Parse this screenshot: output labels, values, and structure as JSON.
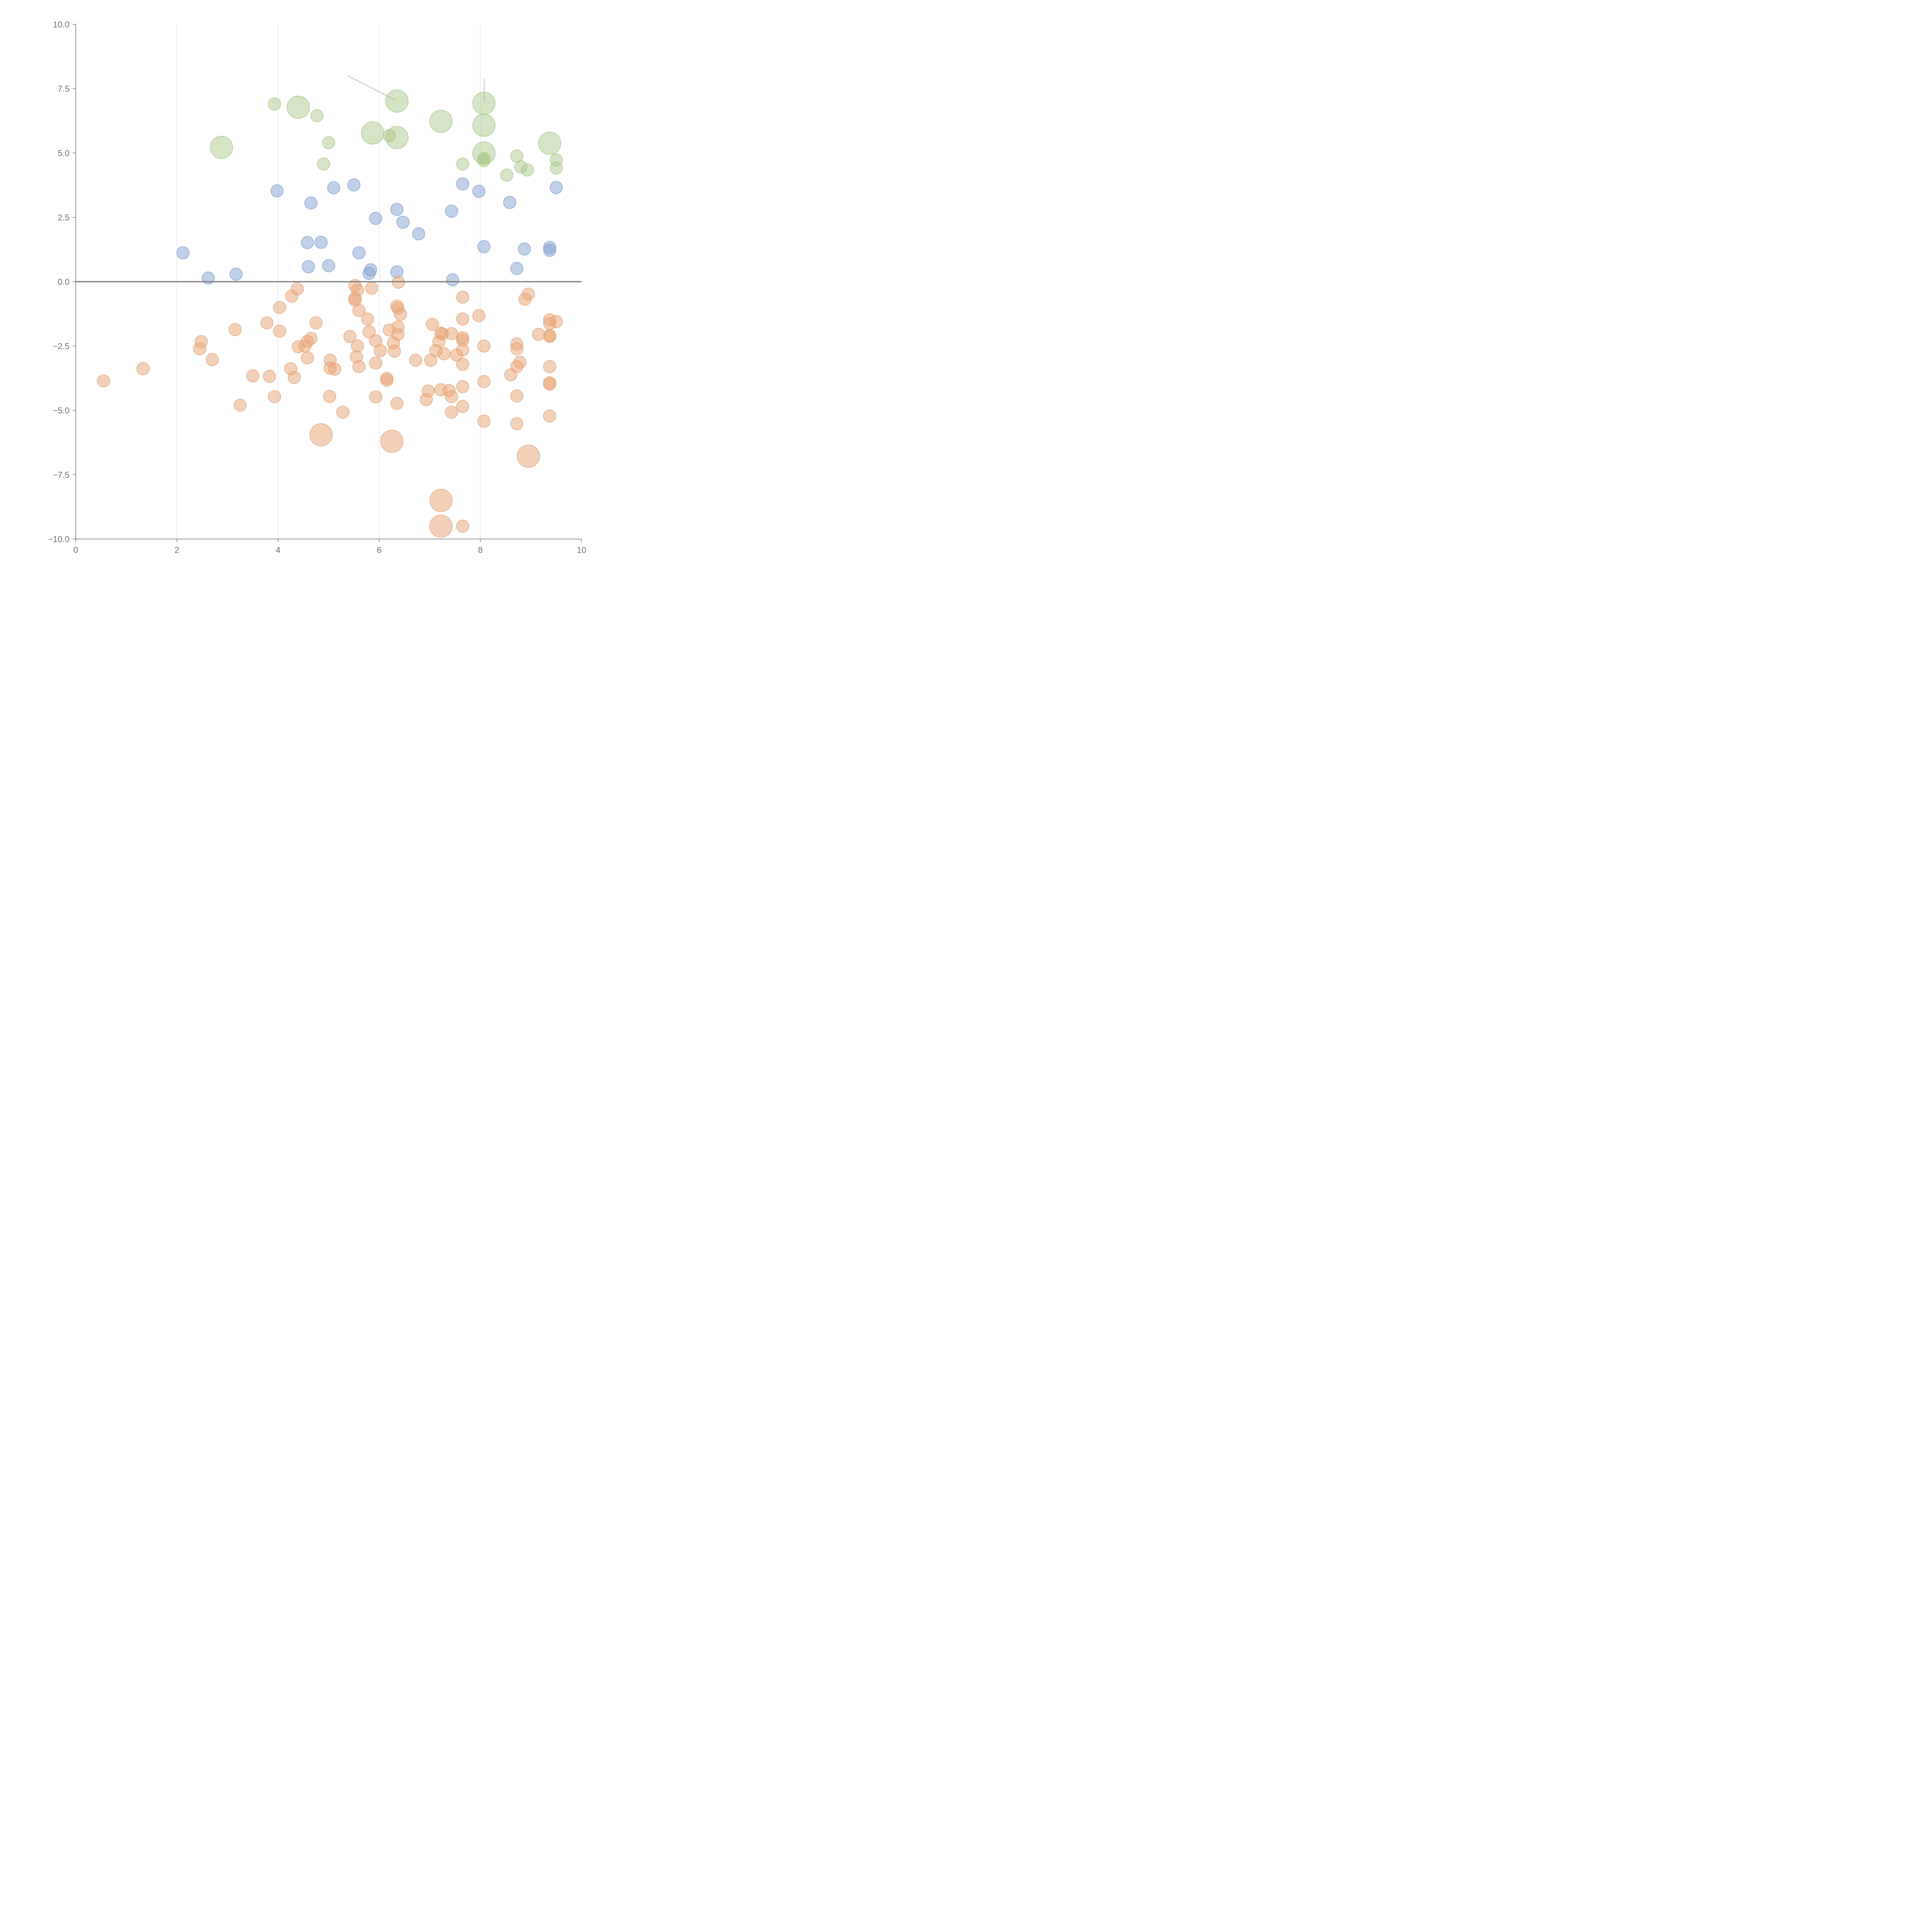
{
  "colors": {
    "up": "#a9c98a",
    "mid": "#7fa1d2",
    "down": "#e8a374",
    "grid": "#dcdcdc",
    "axis": "#777777",
    "tick_text": "#707070"
  },
  "chart_data": {
    "type": "scatter",
    "title": "",
    "xlabel": "",
    "ylabel": "",
    "xlim": [
      0,
      10
    ],
    "ylim": [
      -10,
      10
    ],
    "x_ticks": [
      "0",
      "2",
      "4",
      "6",
      "8",
      "10"
    ],
    "y_ticks": [
      "10.0",
      "7.5",
      "5.0",
      "2.5",
      "0.0",
      "−2.5",
      "−5.0",
      "−7.5",
      "−10.0"
    ],
    "grid": "vertical",
    "zero_line": true,
    "legend": "none",
    "series": [
      {
        "color_key": "up",
        "points": [
          [
            3.93,
            6.9,
            1
          ],
          [
            4.4,
            6.78,
            3
          ],
          [
            4.77,
            6.45,
            1
          ],
          [
            6.35,
            7.02,
            3
          ],
          [
            7.22,
            6.23,
            3
          ],
          [
            8.07,
            6.93,
            3
          ],
          [
            8.07,
            6.08,
            3
          ],
          [
            2.88,
            5.22,
            3
          ],
          [
            5.87,
            5.78,
            3
          ],
          [
            6.2,
            5.68,
            1
          ],
          [
            6.35,
            5.6,
            3
          ],
          [
            5.0,
            5.4,
            1
          ],
          [
            9.37,
            5.38,
            3
          ],
          [
            8.07,
            5.0,
            3
          ],
          [
            8.07,
            4.78,
            1
          ],
          [
            8.07,
            4.7,
            1
          ],
          [
            4.9,
            4.57,
            1
          ],
          [
            7.65,
            4.57,
            1
          ],
          [
            8.72,
            4.88,
            1
          ],
          [
            8.8,
            4.46,
            1
          ],
          [
            8.93,
            4.34,
            1
          ],
          [
            9.5,
            4.73,
            1
          ],
          [
            9.5,
            4.42,
            1
          ],
          [
            8.52,
            4.14,
            1
          ]
        ]
      },
      {
        "color_key": "mid",
        "points": [
          [
            3.98,
            3.53,
            1
          ],
          [
            5.1,
            3.65,
            1
          ],
          [
            5.5,
            3.76,
            1
          ],
          [
            7.65,
            3.8,
            1
          ],
          [
            7.97,
            3.51,
            1
          ],
          [
            9.5,
            3.66,
            1
          ],
          [
            4.65,
            3.06,
            1
          ],
          [
            8.58,
            3.08,
            1
          ],
          [
            6.35,
            2.81,
            1
          ],
          [
            7.43,
            2.74,
            1
          ],
          [
            5.93,
            2.46,
            1
          ],
          [
            6.47,
            2.31,
            1
          ],
          [
            6.78,
            1.86,
            1
          ],
          [
            4.58,
            1.52,
            1
          ],
          [
            4.85,
            1.53,
            1
          ],
          [
            8.07,
            1.36,
            1
          ],
          [
            9.37,
            1.33,
            1
          ],
          [
            9.37,
            1.22,
            1
          ],
          [
            8.87,
            1.27,
            1
          ],
          [
            2.12,
            1.12,
            1
          ],
          [
            5.6,
            1.12,
            1
          ],
          [
            4.6,
            0.58,
            1
          ],
          [
            5.0,
            0.62,
            1
          ],
          [
            8.72,
            0.51,
            1
          ],
          [
            5.83,
            0.46,
            1
          ],
          [
            5.8,
            0.32,
            1
          ],
          [
            6.35,
            0.38,
            1
          ],
          [
            3.17,
            0.29,
            1
          ],
          [
            2.62,
            0.14,
            1
          ],
          [
            7.45,
            0.07,
            1
          ]
        ]
      },
      {
        "color_key": "down",
        "points": [
          [
            6.38,
            -0.02,
            1
          ],
          [
            5.52,
            -0.15,
            1
          ],
          [
            5.57,
            -0.32,
            1
          ],
          [
            5.85,
            -0.25,
            1
          ],
          [
            4.38,
            -0.28,
            1
          ],
          [
            4.27,
            -0.56,
            1
          ],
          [
            5.52,
            -0.65,
            1
          ],
          [
            5.52,
            -0.72,
            1
          ],
          [
            7.65,
            -0.6,
            1
          ],
          [
            8.95,
            -0.48,
            1
          ],
          [
            8.88,
            -0.68,
            1
          ],
          [
            4.03,
            -1.0,
            1
          ],
          [
            6.35,
            -0.95,
            1
          ],
          [
            6.37,
            -1.03,
            1
          ],
          [
            5.6,
            -1.12,
            1
          ],
          [
            6.42,
            -1.27,
            1
          ],
          [
            7.97,
            -1.32,
            1
          ],
          [
            5.77,
            -1.45,
            1
          ],
          [
            7.65,
            -1.45,
            1
          ],
          [
            9.37,
            -1.48,
            1
          ],
          [
            9.37,
            -1.62,
            1
          ],
          [
            9.5,
            -1.55,
            1
          ],
          [
            3.78,
            -1.6,
            1
          ],
          [
            4.75,
            -1.6,
            1
          ],
          [
            7.05,
            -1.66,
            1
          ],
          [
            6.37,
            -1.76,
            1
          ],
          [
            3.15,
            -1.86,
            1
          ],
          [
            6.2,
            -1.88,
            1
          ],
          [
            4.03,
            -1.92,
            1
          ],
          [
            5.8,
            -1.95,
            1
          ],
          [
            7.22,
            -2.0,
            1
          ],
          [
            7.25,
            -2.03,
            1
          ],
          [
            7.43,
            -2.02,
            1
          ],
          [
            6.37,
            -2.05,
            1
          ],
          [
            9.15,
            -2.05,
            1
          ],
          [
            9.37,
            -2.1,
            1
          ],
          [
            9.37,
            -2.12,
            1
          ],
          [
            5.42,
            -2.13,
            1
          ],
          [
            7.65,
            -2.18,
            1
          ],
          [
            7.65,
            -2.27,
            1
          ],
          [
            4.65,
            -2.2,
            1
          ],
          [
            4.58,
            -2.32,
            1
          ],
          [
            5.93,
            -2.3,
            1
          ],
          [
            7.18,
            -2.33,
            1
          ],
          [
            6.28,
            -2.38,
            1
          ],
          [
            2.48,
            -2.33,
            1
          ],
          [
            8.72,
            -2.42,
            1
          ],
          [
            4.53,
            -2.5,
            1
          ],
          [
            4.4,
            -2.53,
            1
          ],
          [
            5.57,
            -2.5,
            1
          ],
          [
            8.07,
            -2.5,
            1
          ],
          [
            2.45,
            -2.61,
            1
          ],
          [
            8.72,
            -2.61,
            1
          ],
          [
            6.02,
            -2.68,
            1
          ],
          [
            6.3,
            -2.7,
            1
          ],
          [
            7.12,
            -2.68,
            1
          ],
          [
            7.65,
            -2.65,
            1
          ],
          [
            7.28,
            -2.8,
            1
          ],
          [
            7.53,
            -2.85,
            1
          ],
          [
            5.55,
            -2.92,
            1
          ],
          [
            4.58,
            -2.96,
            1
          ],
          [
            2.7,
            -3.03,
            1
          ],
          [
            5.03,
            -3.05,
            1
          ],
          [
            6.72,
            -3.05,
            1
          ],
          [
            7.02,
            -3.05,
            1
          ],
          [
            8.78,
            -3.13,
            1
          ],
          [
            5.93,
            -3.16,
            1
          ],
          [
            7.65,
            -3.21,
            1
          ],
          [
            8.72,
            -3.3,
            1
          ],
          [
            9.37,
            -3.3,
            1
          ],
          [
            5.6,
            -3.3,
            1
          ],
          [
            1.33,
            -3.38,
            1
          ],
          [
            4.25,
            -3.38,
            1
          ],
          [
            5.03,
            -3.36,
            1
          ],
          [
            5.12,
            -3.4,
            1
          ],
          [
            3.5,
            -3.66,
            1
          ],
          [
            3.83,
            -3.68,
            1
          ],
          [
            4.32,
            -3.72,
            1
          ],
          [
            8.6,
            -3.62,
            1
          ],
          [
            6.15,
            -3.76,
            1
          ],
          [
            6.15,
            -3.83,
            1
          ],
          [
            0.55,
            -3.86,
            1
          ],
          [
            8.07,
            -3.88,
            1
          ],
          [
            9.37,
            -3.93,
            1
          ],
          [
            9.37,
            -3.98,
            1
          ],
          [
            7.65,
            -4.08,
            1
          ],
          [
            6.97,
            -4.25,
            1
          ],
          [
            7.22,
            -4.2,
            1
          ],
          [
            7.38,
            -4.23,
            1
          ],
          [
            3.93,
            -4.47,
            1
          ],
          [
            5.02,
            -4.46,
            1
          ],
          [
            5.93,
            -4.48,
            1
          ],
          [
            7.43,
            -4.47,
            1
          ],
          [
            8.72,
            -4.44,
            1
          ],
          [
            6.93,
            -4.58,
            1
          ],
          [
            6.35,
            -4.73,
            1
          ],
          [
            3.25,
            -4.8,
            1
          ],
          [
            7.65,
            -4.85,
            1
          ],
          [
            5.28,
            -5.07,
            1
          ],
          [
            7.43,
            -5.07,
            1
          ],
          [
            9.37,
            -5.22,
            1
          ],
          [
            8.07,
            -5.42,
            1
          ],
          [
            8.72,
            -5.52,
            1
          ],
          [
            4.85,
            -5.95,
            3
          ],
          [
            6.25,
            -6.2,
            3
          ],
          [
            8.95,
            -6.78,
            3
          ],
          [
            7.22,
            -8.5,
            3
          ],
          [
            7.22,
            -9.5,
            3
          ],
          [
            7.65,
            -9.5,
            1
          ]
        ]
      }
    ]
  }
}
